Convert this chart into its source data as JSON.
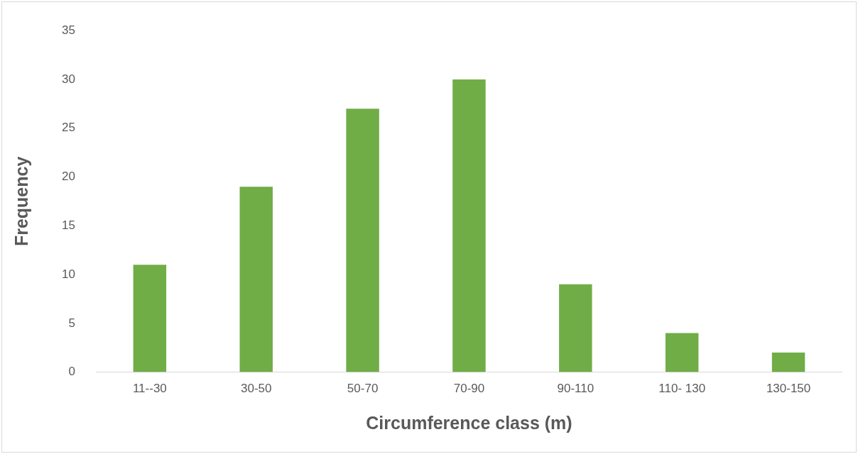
{
  "chart_data": {
    "type": "bar",
    "xlabel": "Circumference class (m)",
    "ylabel": "Frequency",
    "categories": [
      "11--30",
      "30-50",
      "50-70",
      "70-90",
      "90-110",
      "110- 130",
      "130-150"
    ],
    "values": [
      11,
      19,
      27,
      30,
      9,
      4,
      2
    ],
    "color": "#70ad47",
    "ylim": [
      0,
      35
    ],
    "yticks": [
      0,
      5,
      10,
      15,
      20,
      25,
      30,
      35
    ],
    "grid": false,
    "legend": false
  }
}
